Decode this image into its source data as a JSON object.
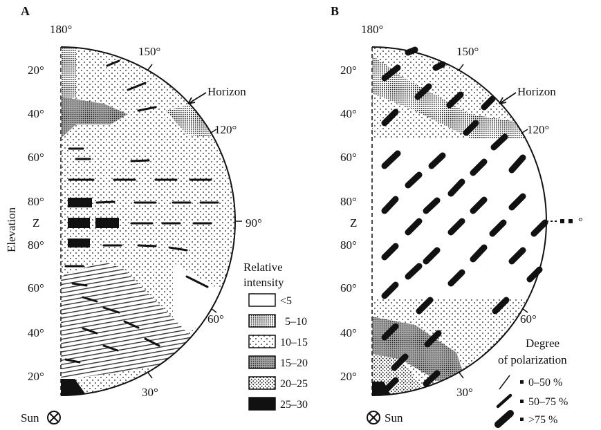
{
  "panel_a": {
    "letter": "A",
    "azimuth_labels": {
      "a180": "180°",
      "a150": "150°",
      "a120": "120°",
      "a90": "90°",
      "a60": "60°",
      "a30": "30°"
    },
    "elevation_labels": {
      "e20_top": "20°",
      "e40_top": "40°",
      "e60_top": "60°",
      "e80_top": "80°",
      "zenith": "Z",
      "e80_bottom": "80°",
      "e60_bottom": "60°",
      "e40_bottom": "40°",
      "e20_bottom": "20°"
    },
    "horizon_label": "Horizon",
    "axis_label": "Elevation",
    "sun_label": "Sun",
    "legend": {
      "title_line1": "Relative",
      "title_line2": "intensity",
      "entries": [
        {
          "label": "<5",
          "pattern": "white"
        },
        {
          "label": "5–10",
          "pattern": "fine-grid"
        },
        {
          "label": "10–15",
          "pattern": "sparse-dots"
        },
        {
          "label": "15–20",
          "pattern": "dense-stipple"
        },
        {
          "label": "20–25",
          "pattern": "medium-dots"
        },
        {
          "label": "25–30",
          "pattern": "black"
        }
      ]
    }
  },
  "panel_b": {
    "letter": "B",
    "azimuth_labels": {
      "a180": "180°",
      "a150": "150°",
      "a120": "120°",
      "a60": "60°",
      "a30": "30°"
    },
    "elevation_labels": {
      "e20_top": "20°",
      "e40_top": "40°",
      "e60_top": "60°",
      "e80_top": "80°",
      "zenith": "Z",
      "e80_bottom": "80°",
      "e60_bottom": "60°",
      "e40_bottom": "40°",
      "e20_bottom": "20°"
    },
    "horizon_label": "Horizon",
    "sun_label": "Sun",
    "edge_marker": "°",
    "legend": {
      "title_line1": "Degree",
      "title_line2": "of polarization",
      "entries": [
        {
          "label": "0–50 %"
        },
        {
          "label": "50–75 %"
        },
        {
          "label": ">75 %"
        }
      ]
    }
  }
}
